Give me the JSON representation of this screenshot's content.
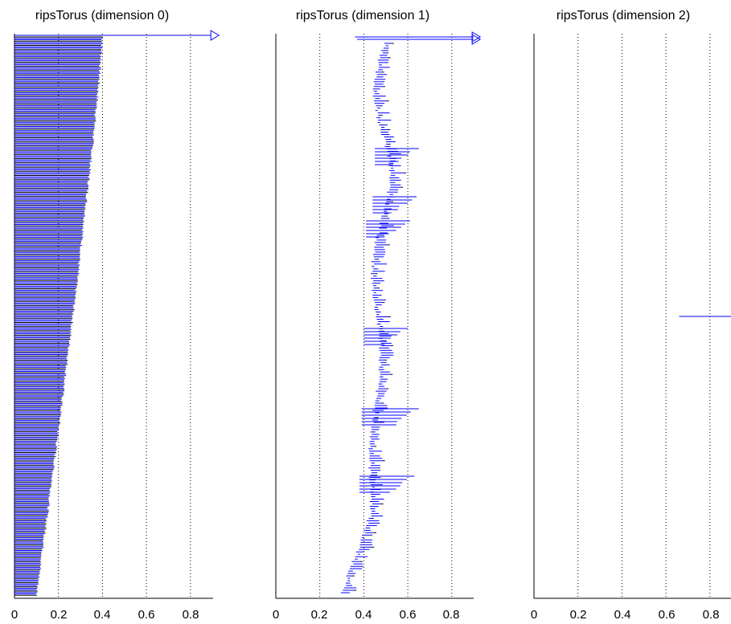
{
  "chart_data": [
    {
      "type": "barcode",
      "title": "ripsTorus (dimension 0)",
      "xlim": [
        0,
        0.9
      ],
      "xticks": [
        "0",
        "0.2",
        "0.4",
        "0.6",
        "0.8"
      ],
      "grid": "vertical dotted",
      "bar_color": "#0000ff",
      "infinite_intervals": [
        {
          "birth": 0.0,
          "arrow_at": 0.9
        }
      ],
      "interval_count_estimate": 400,
      "death_range": [
        0.1,
        0.4
      ],
      "intervals_start_at": 0.0
    },
    {
      "type": "barcode",
      "title": "ripsTorus (dimension 1)",
      "xlim": [
        0,
        0.9
      ],
      "xticks": [
        "0",
        "0.2",
        "0.4",
        "0.6",
        "0.8"
      ],
      "grid": "vertical dotted",
      "bar_color": "#0000ff",
      "infinite_intervals": [
        {
          "birth": 0.36,
          "arrow_at": 0.9
        },
        {
          "birth": 0.37,
          "arrow_at": 0.9
        }
      ],
      "long_intervals": [
        {
          "birth": 0.45,
          "death": 0.65
        },
        {
          "birth": 0.44,
          "death": 0.64
        },
        {
          "birth": 0.41,
          "death": 0.61
        },
        {
          "birth": 0.4,
          "death": 0.6
        },
        {
          "birth": 0.39,
          "death": 0.65
        },
        {
          "birth": 0.38,
          "death": 0.63
        }
      ]
    },
    {
      "type": "barcode",
      "title": "ripsTorus (dimension 2)",
      "xlim": [
        0,
        0.9
      ],
      "xticks": [
        "0",
        "0.2",
        "0.4",
        "0.6",
        "0.8"
      ],
      "grid": "vertical dotted",
      "bar_color": "#0000ff",
      "intervals": [
        {
          "birth": 0.66,
          "death": 0.9
        }
      ]
    }
  ]
}
